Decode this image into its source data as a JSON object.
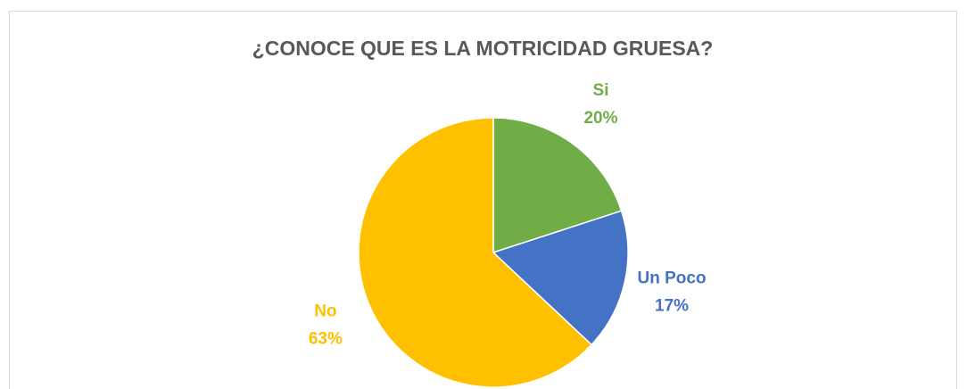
{
  "chart_data": {
    "type": "pie",
    "title": "¿CONOCE QUE ES LA MOTRICIDAD GRUESA?",
    "categories": [
      "Si",
      "Un Poco",
      "No"
    ],
    "values": [
      20,
      17,
      63
    ],
    "value_labels": [
      "20%",
      "17%",
      "63%"
    ],
    "colors": [
      "#70ad47",
      "#4472c4",
      "#ffc000"
    ]
  }
}
